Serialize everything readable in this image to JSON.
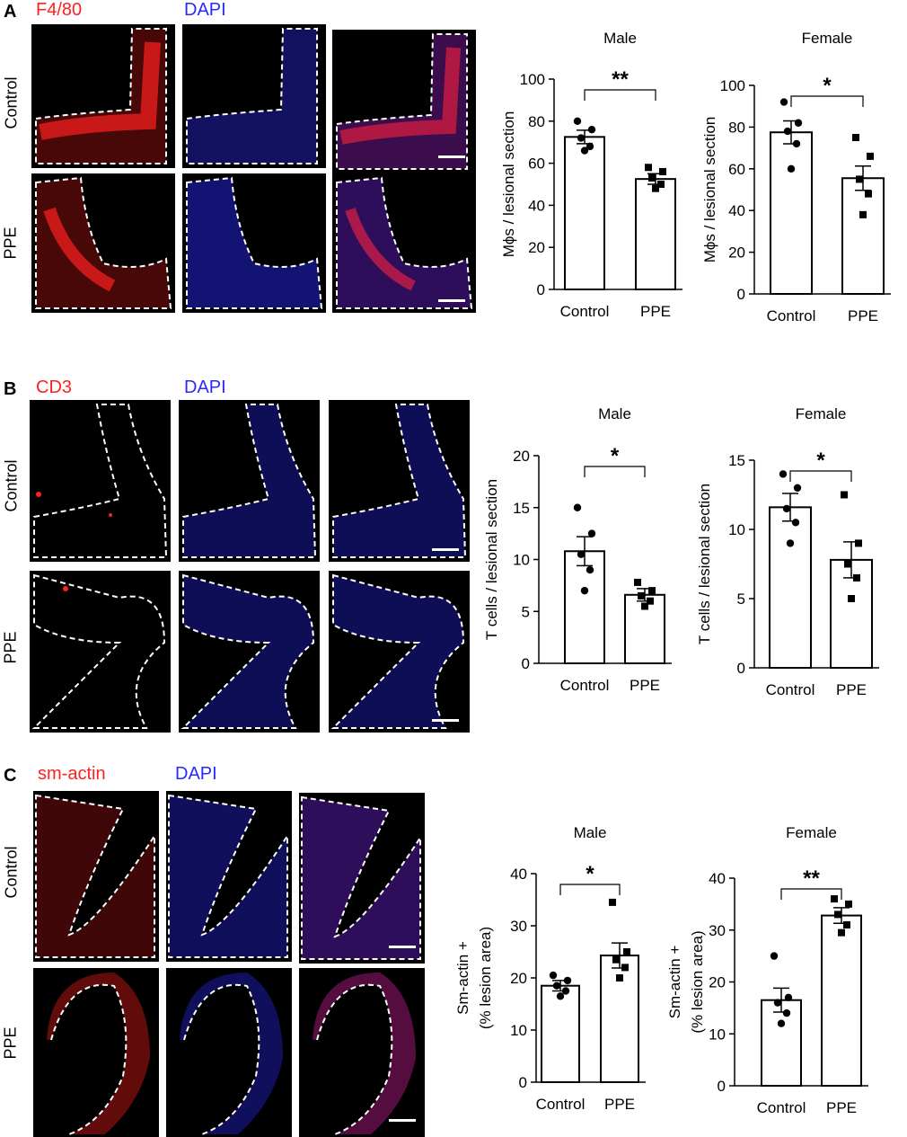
{
  "panels": [
    {
      "letter": "A",
      "stain_red": "F4/80",
      "stain_blue": "DAPI",
      "rows": [
        "Control",
        "PPE"
      ]
    },
    {
      "letter": "B",
      "stain_red": "CD3",
      "stain_blue": "DAPI",
      "rows": [
        "Control",
        "PPE"
      ]
    },
    {
      "letter": "C",
      "stain_red": "sm-actin",
      "stain_blue": "DAPI",
      "rows": [
        "Control",
        "PPE"
      ]
    }
  ],
  "colors": {
    "red_stain": "#ff2020",
    "blue_stain": "#2a2aff",
    "background": "#000000",
    "dashed": "#ffffff"
  },
  "chart_data": [
    {
      "type": "bar",
      "title": "Male",
      "ylabel": "Mϕs / lesional section",
      "categories": [
        "Control",
        "PPE"
      ],
      "values": [
        72.5,
        52.5
      ],
      "sem": [
        3.2,
        2.5
      ],
      "ylim": [
        0,
        100
      ],
      "yticks": [
        0,
        20,
        40,
        60,
        80,
        100
      ],
      "points": [
        [
          80,
          76,
          72,
          68,
          66
        ],
        [
          58,
          56,
          53,
          50,
          48
        ]
      ],
      "significance": "**"
    },
    {
      "type": "bar",
      "title": "Female",
      "ylabel": "Mϕs / lesional section",
      "categories": [
        "Control",
        "PPE"
      ],
      "values": [
        77.5,
        55.5
      ],
      "sem": [
        5.5,
        5.8
      ],
      "ylim": [
        0,
        100
      ],
      "yticks": [
        0,
        20,
        40,
        60,
        80,
        100
      ],
      "points": [
        [
          92,
          82,
          78,
          72,
          60
        ],
        [
          75,
          66,
          55,
          48,
          38
        ]
      ],
      "significance": "*"
    },
    {
      "type": "bar",
      "title": "Male",
      "ylabel": "T cells / lesional section",
      "categories": [
        "Control",
        "PPE"
      ],
      "values": [
        10.8,
        6.6
      ],
      "sem": [
        1.4,
        0.6
      ],
      "ylim": [
        0,
        20
      ],
      "yticks": [
        0,
        5,
        10,
        15,
        20
      ],
      "points": [
        [
          15,
          12.5,
          10.5,
          9,
          7
        ],
        [
          7.8,
          7,
          6.5,
          6,
          5.5
        ]
      ],
      "significance": "*"
    },
    {
      "type": "bar",
      "title": "Female",
      "ylabel": "T cells / lesional section",
      "categories": [
        "Control",
        "PPE"
      ],
      "values": [
        11.6,
        7.8
      ],
      "sem": [
        1.0,
        1.3
      ],
      "ylim": [
        0,
        15
      ],
      "yticks": [
        0,
        5,
        10,
        15
      ],
      "points": [
        [
          14,
          13,
          11.5,
          10.5,
          9
        ],
        [
          12.5,
          9,
          7.5,
          6.5,
          5
        ]
      ],
      "significance": "*"
    },
    {
      "type": "bar",
      "title": "Male",
      "ylabel_lines": [
        "Sm-actin +",
        "(% lesion area)"
      ],
      "categories": [
        "Control",
        "PPE"
      ],
      "values": [
        18.5,
        24.3
      ],
      "sem": [
        1.0,
        2.4
      ],
      "ylim": [
        0,
        40
      ],
      "yticks": [
        0,
        10,
        20,
        30,
        40
      ],
      "points": [
        [
          20.5,
          19.5,
          18.5,
          17.5,
          16.5
        ],
        [
          34.5,
          25,
          23.5,
          22,
          20
        ]
      ],
      "significance": "*"
    },
    {
      "type": "bar",
      "title": "Female",
      "ylabel_lines": [
        "Sm-actin +",
        "(% lesion area)"
      ],
      "categories": [
        "Control",
        "PPE"
      ],
      "values": [
        16.5,
        32.8
      ],
      "sem": [
        2.3,
        1.5
      ],
      "ylim": [
        0,
        40
      ],
      "yticks": [
        0,
        10,
        20,
        30,
        40
      ],
      "points": [
        [
          25,
          17,
          16,
          14,
          12
        ],
        [
          36,
          35,
          33,
          31,
          29.5
        ]
      ],
      "significance": "**"
    }
  ]
}
